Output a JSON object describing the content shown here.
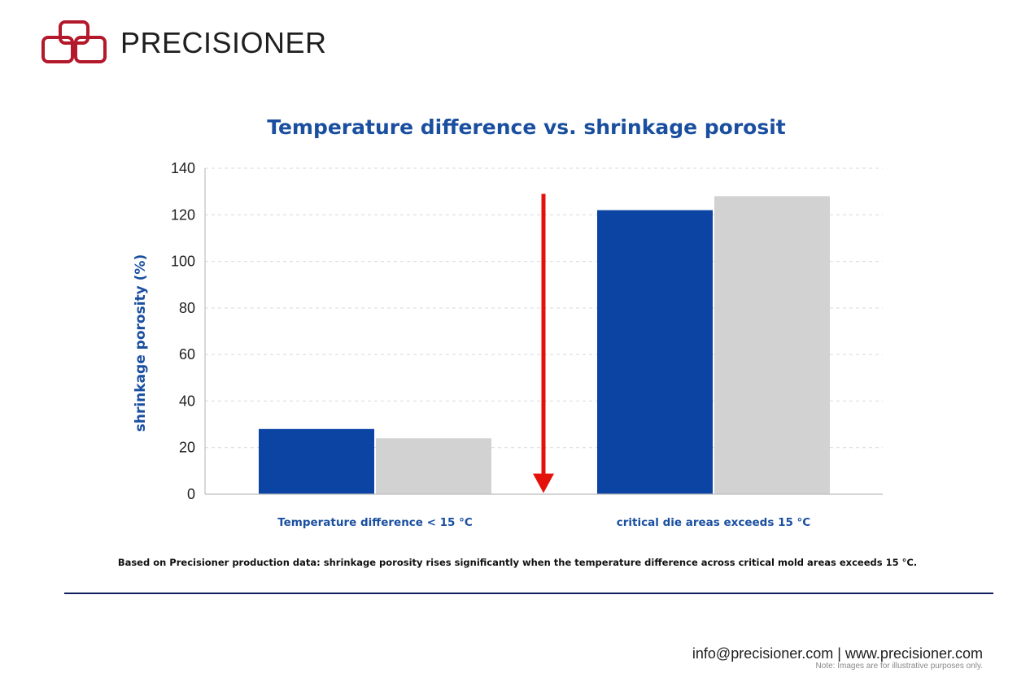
{
  "brand": {
    "name": "PRECISIONER",
    "logo_color": "#b3182b"
  },
  "chart_data": {
    "type": "bar",
    "title": "Temperature difference vs. shrinkage porosit",
    "xlabel": "",
    "ylabel": "shrinkage porosity (%)",
    "ylim": [
      0,
      140
    ],
    "yticks": [
      0,
      20,
      40,
      60,
      80,
      100,
      120,
      140
    ],
    "grid": true,
    "categories": [
      "Temperature difference < 15 °C",
      "critical die areas exceeds 15 °C"
    ],
    "series": [
      {
        "values": [
          28,
          122
        ],
        "color": "#0b44a3"
      },
      {
        "values": [
          24,
          128
        ],
        "color": "#d2d2d2"
      }
    ],
    "annotation": {
      "type": "arrow",
      "direction": "down",
      "color": "#e3120b"
    }
  },
  "footnote": "Based on Precisioner production data: shrinkage porosity rises significantly when the temperature difference across critical mold areas exceeds 15 °C.",
  "footer": {
    "contact": "info@precisioner.com | www.precisioner.com",
    "note": "Note: Images are for illustrative purposes only."
  }
}
